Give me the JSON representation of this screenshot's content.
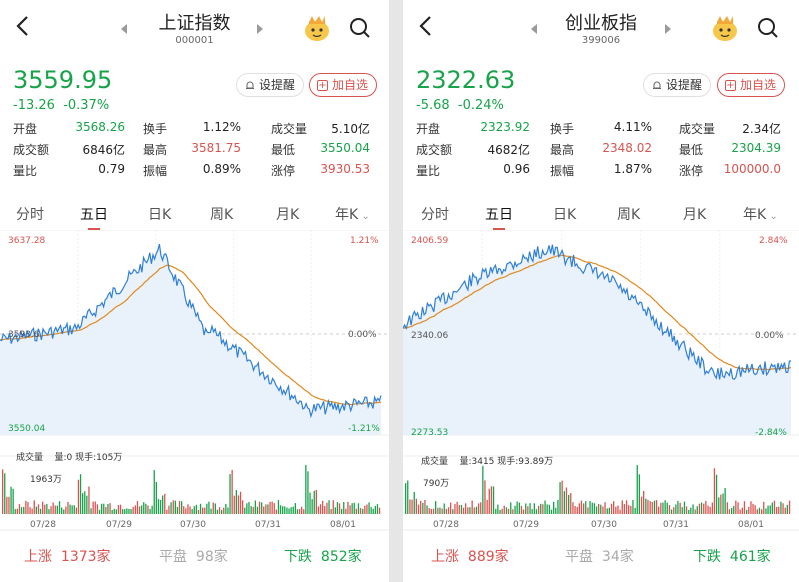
{
  "colors": {
    "up": "#d9534f",
    "down": "#17a34a",
    "avg_line": "#e0891c",
    "price_line": "#2f7fd6",
    "fill": "#e9f1fb"
  },
  "panels": [
    {
      "title": "上证指数",
      "code": "000001",
      "price": "3559.95",
      "change": "-13.26",
      "change_pct": "-0.37%",
      "set_alert": "设提醒",
      "add_watch": "加自选",
      "stats": [
        {
          "label": "开盘",
          "value": "3568.26",
          "color": "down"
        },
        {
          "label": "换手",
          "value": "1.12%",
          "color": "normal"
        },
        {
          "label": "成交量",
          "value": "5.10亿",
          "color": "normal"
        },
        {
          "label": "成交额",
          "value": "6846亿",
          "color": "normal"
        },
        {
          "label": "最高",
          "value": "3581.75",
          "color": "up"
        },
        {
          "label": "最低",
          "value": "3550.04",
          "color": "down"
        },
        {
          "label": "量比",
          "value": "0.79",
          "color": "normal"
        },
        {
          "label": "振幅",
          "value": "0.89%",
          "color": "normal"
        },
        {
          "label": "涨停",
          "value": "3930.53",
          "color": "up"
        }
      ],
      "tabs": [
        "分时",
        "五日",
        "日K",
        "周K",
        "月K",
        "年K"
      ],
      "active_tab": "五日",
      "axis": {
        "top_left": "3637.28",
        "mid_left": "3593.6",
        "bottom_left": "3550.04",
        "top_right": "1.21%",
        "mid_right": "0.00%",
        "bottom_right": "-1.21%"
      },
      "volume_title": "成交量",
      "volume_info": "量:0 现手:105万",
      "volume_max": "1963万",
      "dates": [
        "07/28",
        "07/29",
        "07/30",
        "07/31",
        "08/01"
      ],
      "rise_label": "上涨",
      "rise_count": "1373家",
      "flat_label": "平盘",
      "flat_count": "98家",
      "fall_label": "下跌",
      "fall_count": "852家"
    },
    {
      "title": "创业板指",
      "code": "399006",
      "price": "2322.63",
      "change": "-5.68",
      "change_pct": "-0.24%",
      "set_alert": "设提醒",
      "add_watch": "加自选",
      "stats": [
        {
          "label": "开盘",
          "value": "2323.92",
          "color": "down"
        },
        {
          "label": "换手",
          "value": "4.11%",
          "color": "normal"
        },
        {
          "label": "成交量",
          "value": "2.34亿",
          "color": "normal"
        },
        {
          "label": "成交额",
          "value": "4682亿",
          "color": "normal"
        },
        {
          "label": "最高",
          "value": "2348.02",
          "color": "up"
        },
        {
          "label": "最低",
          "value": "2304.39",
          "color": "down"
        },
        {
          "label": "量比",
          "value": "0.96",
          "color": "normal"
        },
        {
          "label": "振幅",
          "value": "1.87%",
          "color": "normal"
        },
        {
          "label": "涨停",
          "value": "100000.0",
          "color": "up"
        }
      ],
      "tabs": [
        "分时",
        "五日",
        "日K",
        "周K",
        "月K",
        "年K"
      ],
      "active_tab": "五日",
      "axis": {
        "top_left": "2406.59",
        "mid_left": "2340.06",
        "bottom_left": "2273.53",
        "top_right": "2.84%",
        "mid_right": "0.00%",
        "bottom_right": "-2.84%"
      },
      "volume_title": "成交量",
      "volume_info": "量:3415 现手:93.89万",
      "volume_max": "790万",
      "dates": [
        "07/28",
        "07/29",
        "07/30",
        "07/31",
        "08/01"
      ],
      "rise_label": "上涨",
      "rise_count": "889家",
      "flat_label": "平盘",
      "flat_count": "34家",
      "fall_label": "下跌",
      "fall_count": "461家"
    }
  ]
}
